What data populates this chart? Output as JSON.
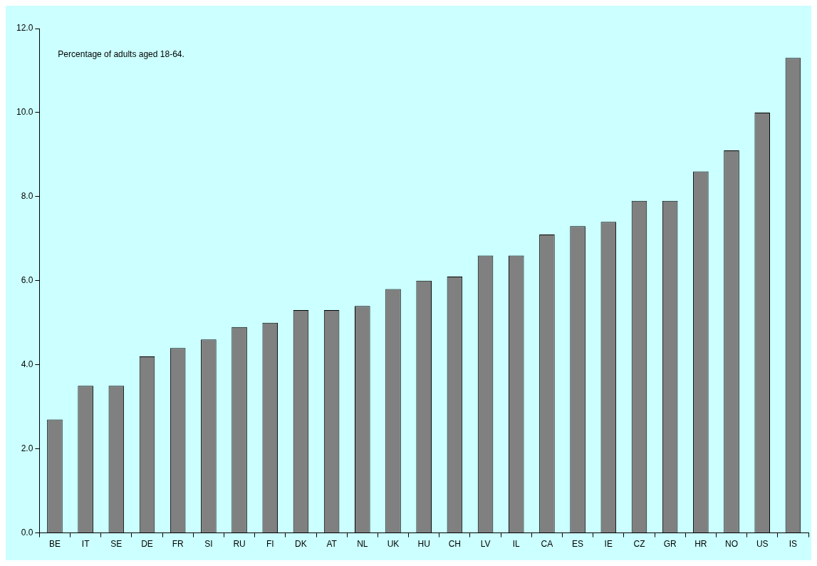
{
  "chart_data": {
    "type": "bar",
    "categories": [
      "BE",
      "IT",
      "SE",
      "DE",
      "FR",
      "SI",
      "RU",
      "FI",
      "DK",
      "AT",
      "NL",
      "UK",
      "HU",
      "CH",
      "LV",
      "IL",
      "CA",
      "ES",
      "IE",
      "CZ",
      "GR",
      "HR",
      "NO",
      "US",
      "IS"
    ],
    "values": [
      2.7,
      3.5,
      3.5,
      4.2,
      4.4,
      4.6,
      4.9,
      5.0,
      5.3,
      5.3,
      5.4,
      5.8,
      6.0,
      6.1,
      6.6,
      6.6,
      7.1,
      7.3,
      7.4,
      7.9,
      7.9,
      8.6,
      9.1,
      10.0,
      11.3
    ],
    "color": "#808080",
    "ylim": [
      0,
      12
    ],
    "yticks": [
      {
        "value": 0,
        "label": "0.0"
      },
      {
        "value": 2,
        "label": "2.0"
      },
      {
        "value": 4,
        "label": "4.0"
      },
      {
        "value": 6,
        "label": "6.0"
      },
      {
        "value": 8,
        "label": "8.0"
      },
      {
        "value": 10,
        "label": "10.0"
      },
      {
        "value": 12,
        "label": "12.0"
      }
    ],
    "grid": false,
    "legend": false,
    "annotations": [
      "Percentage of adults aged 18-64."
    ]
  }
}
